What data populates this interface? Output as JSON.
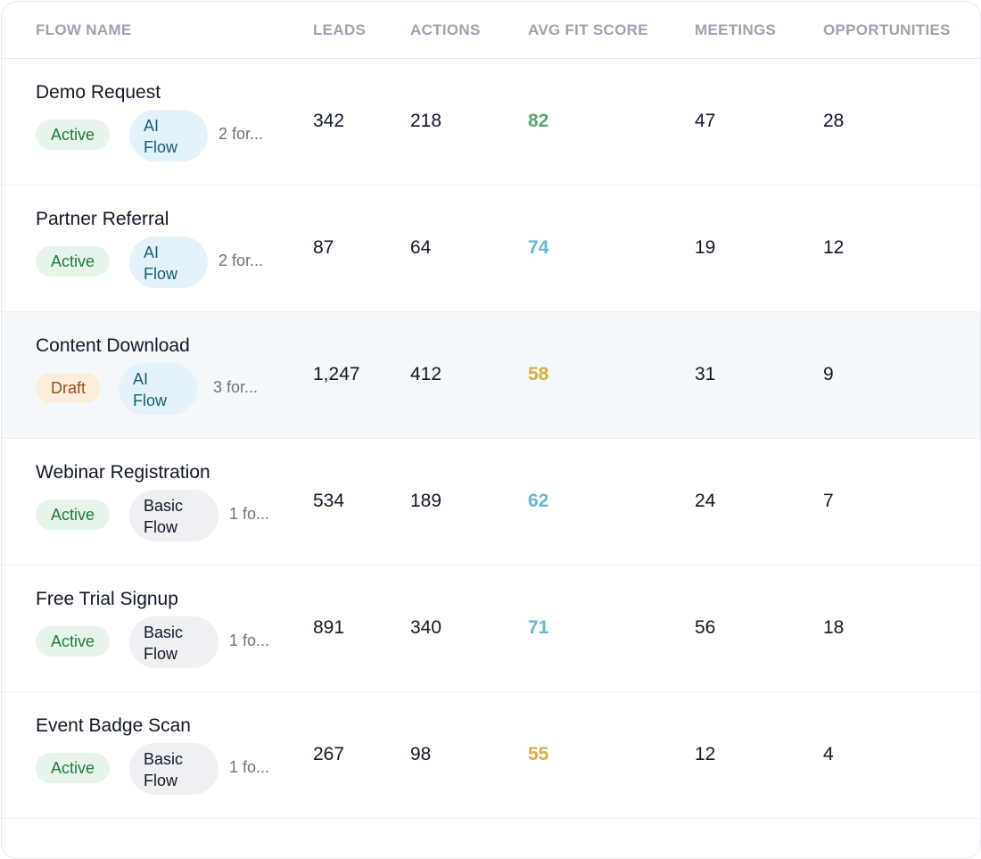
{
  "colors": {
    "score_green": "#5aa876",
    "score_blue": "#62b8d6",
    "score_yellow": "#d9ae45"
  },
  "table": {
    "headers": [
      "FLOW NAME",
      "LEADS",
      "ACTIONS",
      "AVG FIT SCORE",
      "MEETINGS",
      "OPPORTUNITIES"
    ],
    "rows": [
      {
        "name": "Demo Request",
        "status": "Active",
        "type_line1": "AI",
        "type_line2": "Flow",
        "forms": "2 for...",
        "leads": "342",
        "actions": "218",
        "fit_score": "82",
        "fit_color": "#5aa876",
        "meetings": "47",
        "opportunities": "28"
      },
      {
        "name": "Partner Referral",
        "status": "Active",
        "type_line1": "AI",
        "type_line2": "Flow",
        "forms": "2 for...",
        "leads": "87",
        "actions": "64",
        "fit_score": "74",
        "fit_color": "#62b8d6",
        "meetings": "19",
        "opportunities": "12"
      },
      {
        "name": "Content Download",
        "status": "Draft",
        "type_line1": "AI",
        "type_line2": "Flow",
        "forms": "3 for...",
        "leads": "1,247",
        "actions": "412",
        "fit_score": "58",
        "fit_color": "#d9ae45",
        "meetings": "31",
        "opportunities": "9"
      },
      {
        "name": "Webinar Registration",
        "status": "Active",
        "type_line1": "Basic",
        "type_line2": "Flow",
        "forms": "1 fo...",
        "leads": "534",
        "actions": "189",
        "fit_score": "62",
        "fit_color": "#62b8d6",
        "meetings": "24",
        "opportunities": "7"
      },
      {
        "name": "Free Trial Signup",
        "status": "Active",
        "type_line1": "Basic",
        "type_line2": "Flow",
        "forms": "1 fo...",
        "leads": "891",
        "actions": "340",
        "fit_score": "71",
        "fit_color": "#62b8d6",
        "meetings": "56",
        "opportunities": "18"
      },
      {
        "name": "Event Badge Scan",
        "status": "Active",
        "type_line1": "Basic",
        "type_line2": "Flow",
        "forms": "1 fo...",
        "leads": "267",
        "actions": "98",
        "fit_score": "55",
        "fit_color": "#d9ae45",
        "meetings": "12",
        "opportunities": "4"
      }
    ]
  }
}
